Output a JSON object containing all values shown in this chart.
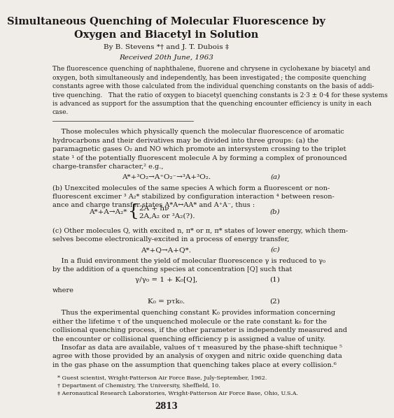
{
  "bg_color": "#f0ede8",
  "title_line1": "Simultaneous Quenching of Molecular Fluorescence by",
  "title_line2": "Oxygen and Biacetyl in Solution",
  "byline": "By B. Stevens *† and J. T. Dubois ‡",
  "received": "Received 20th June, 1963",
  "abstract_lines": [
    "The fluorescence quenching of naphthalene, fluorene and chrysene in cyclohexane by biacetyl and",
    "oxygen, both simultaneously and independently, has been investigated ; the composite quenching",
    "constants agree with those calculated from the individual quenching constants on the basis of addi-",
    "tive quenching.   That the ratio of oxygen to biacetyl quenching constants is 2·3 ± 0·4 for these systems",
    "is advanced as support for the assumption that the quenching encounter efficiency is unity in each",
    "case."
  ],
  "para1_lines": [
    "    Those molecules which physically quench the molecular fluorescence of aromatic",
    "hydrocarbons and their derivatives may be divided into three groups: (a) the",
    "paramagnetic gases O₂ and NO which promote an intersystem crossing to the triplet",
    "state ¹ of the potentially fluorescent molecule A by forming a complex of pronounced",
    "charge-transfer character,² e.g.,"
  ],
  "eq_a": "A*+³O₂→A⁺O₂⁻→³A+³O₂.",
  "eq_a_label": "(a)",
  "para2_lines": [
    "(b) Unexcited molecules of the same species A which form a fluorescent or non-",
    "fluorescent excimer ³ A₂* stabilized by configuration interaction ⁴ between reson-",
    "ance and charge transfer states A*A↔AA* and A⁺A⁻, thus :"
  ],
  "eq_b_left": "A*+A→A₂*",
  "eq_b_upper": "2A + hν",
  "eq_b_lower": "2A,A₂ or ³A₂(?).",
  "eq_b_label": "(b)",
  "para3_lines": [
    "(c) Other molecules Q, with excited n, π* or π, π* states of lower energy, which them-",
    "selves become electronically-excited in a process of energy transfer,"
  ],
  "eq_c": "A*+Q→A+Q*.",
  "eq_c_label": "(c)",
  "para4_lines": [
    "    In a fluid environment the yield of molecular fluorescence γ is reduced to γ₀",
    "by the addition of a quenching species at concentration [Q] such that"
  ],
  "eq_1": "γ/γ₀ = 1 + K₀[Q],",
  "eq_1_label": "(1)",
  "where_text": "where",
  "eq_2": "K₀ = pτk₀.",
  "eq_2_label": "(2)",
  "para5_lines": [
    "    Thus the experimental quenching constant K₀ provides information concerning",
    "either the lifetime τ of the unquenched molecule or the rate constant k₀ for the",
    "collisional quenching process, if the other parameter is independently measured and",
    "the encounter or collisional quenching efficiency p is assigned a value of unity.",
    "    Insofar as data are available, values of τ measured by the phase-shift technique ⁵",
    "agree with those provided by an analysis of oxygen and nitric oxide quenching data",
    "in the gas phase on the assumption that quenching takes place at every collision.⁶"
  ],
  "footnote1": "* Guest scientist, Wright-Patterson Air Force Base, July-September, 1962.",
  "footnote2": "† Department of Chemistry, The University, Sheffield, 10.",
  "footnote3": "‡ Aeronautical Research Laboratories, Wright-Patterson Air Force Base, Ohio, U.S.A.",
  "page_number": "2813",
  "text_color": "#1a1a1a",
  "line_color": "#444444"
}
